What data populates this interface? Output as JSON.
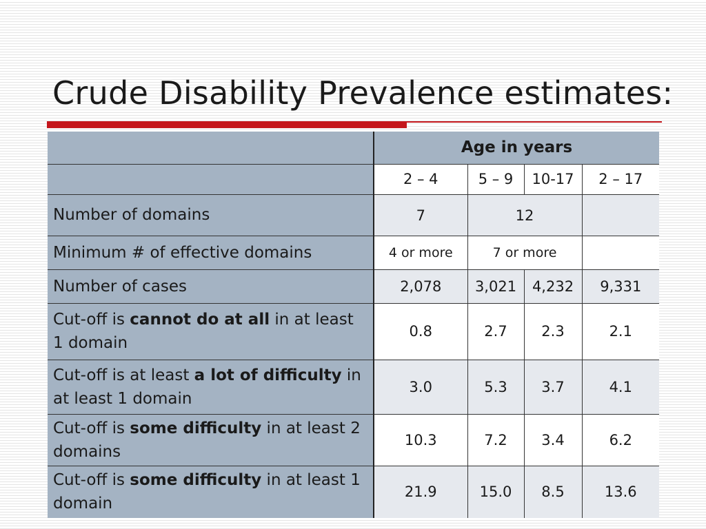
{
  "slide": {
    "title": "Crude Disability Prevalence estimates:"
  },
  "table": {
    "header": "Age in years",
    "age_groups": [
      "2 – 4",
      "5 – 9",
      "10-17",
      "2 – 17"
    ],
    "rows": {
      "domains": {
        "label": "Number of domains",
        "v0": "7",
        "v1": "12"
      },
      "min_domains": {
        "label": "Minimum # of effective domains",
        "v0": "4 or more",
        "v1": "7 or more"
      },
      "cases": {
        "label": "Number of cases",
        "values": [
          "2,078",
          "3,021",
          "4,232",
          "9,331"
        ]
      },
      "cannot": {
        "pre": "Cut-off is ",
        "bold": "cannot do at all",
        "post": " in at least 1 domain",
        "values": [
          "0.8",
          "2.7",
          "2.3",
          "2.1"
        ]
      },
      "alot": {
        "pre": "Cut-off is at least ",
        "bold": "a lot of difficulty",
        "post": " in at least 1 domain",
        "values": [
          "3.0",
          "5.3",
          "3.7",
          "4.1"
        ]
      },
      "some2": {
        "pre": "Cut-off is ",
        "bold": "some difficulty",
        "post": " in at least 2 domains",
        "values": [
          "10.3",
          "7.2",
          "3.4",
          "6.2"
        ]
      },
      "some1": {
        "pre": "Cut-off is ",
        "bold": "some difficulty",
        "post": " in at least 1 domain",
        "values": [
          "21.9",
          "15.0",
          "8.5",
          "13.6"
        ]
      }
    }
  },
  "colors": {
    "label_bg": "#a4b3c3",
    "value_alt_bg": "#e6e9ee",
    "accent_red": "#c4161c"
  }
}
